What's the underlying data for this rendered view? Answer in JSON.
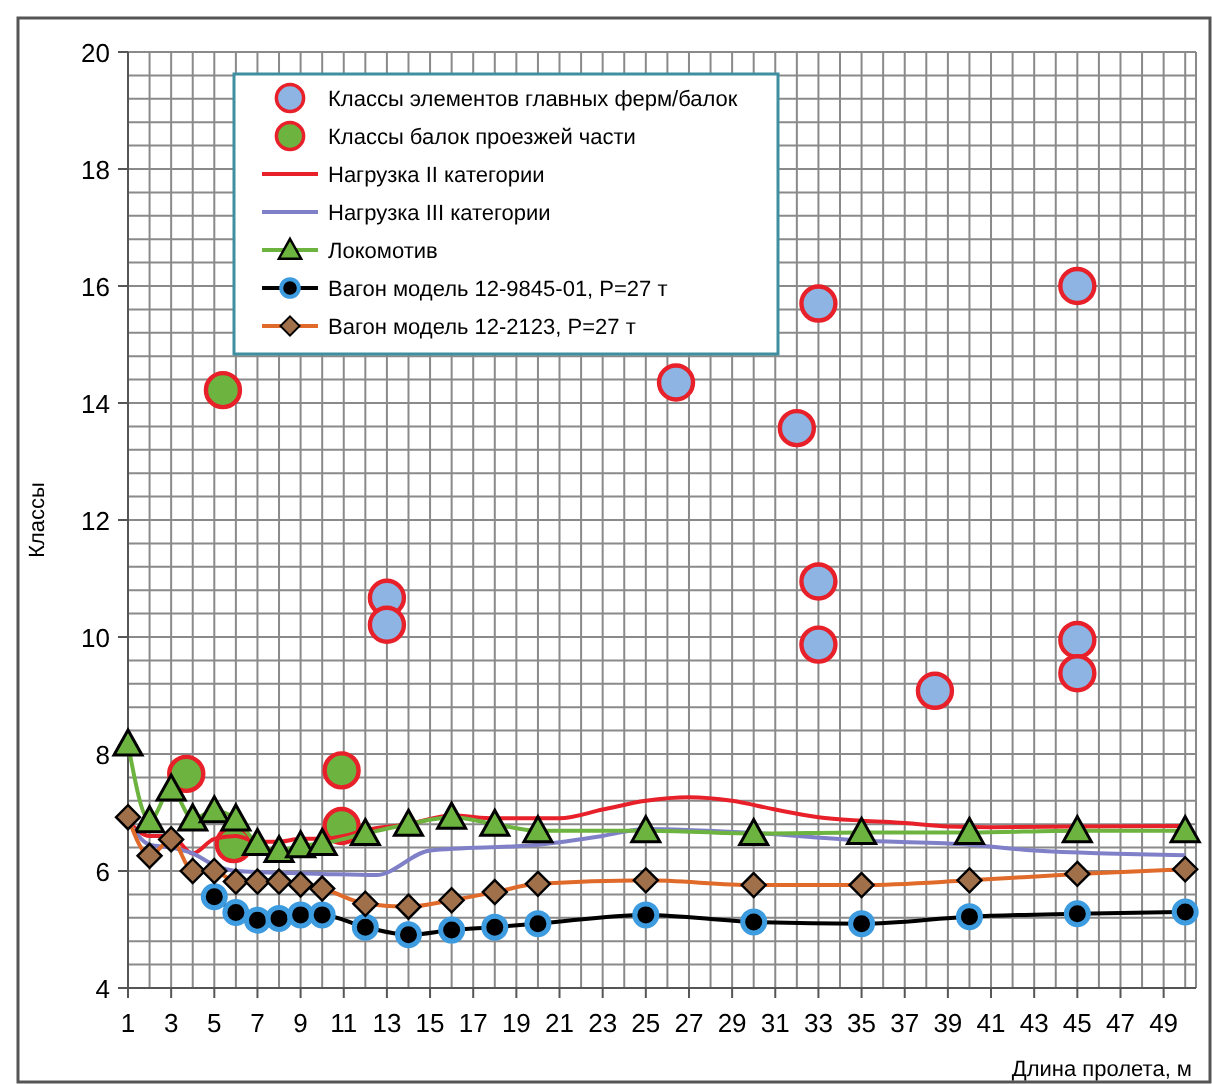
{
  "chart_data": {
    "type": "line",
    "ylabel": "Классы",
    "xlabel": "Длина пролета, м",
    "xlim": [
      1,
      50.5
    ],
    "ylim": [
      4,
      20
    ],
    "xticks": [
      1,
      {
        "value": 2,
        "label": null
      },
      3,
      {
        "value": 4,
        "label": null
      },
      5,
      {
        "value": 6,
        "label": null
      },
      7,
      {
        "value": 8,
        "label": null
      },
      9,
      {
        "value": 10,
        "label": null
      },
      11,
      {
        "value": 12,
        "label": null
      },
      13,
      {
        "value": 14,
        "label": null
      },
      15,
      {
        "value": 16,
        "label": null
      },
      17,
      {
        "value": 18,
        "label": null
      },
      19,
      {
        "value": 20,
        "label": null
      },
      21,
      {
        "value": 22,
        "label": null
      },
      23,
      {
        "value": 24,
        "label": null
      },
      25,
      {
        "value": 26,
        "label": null
      },
      27,
      {
        "value": 28,
        "label": null
      },
      29,
      {
        "value": 30,
        "label": null
      },
      31,
      {
        "value": 32,
        "label": null
      },
      33,
      {
        "value": 34,
        "label": null
      },
      35,
      {
        "value": 36,
        "label": null
      },
      37,
      {
        "value": 38,
        "label": null
      },
      39,
      {
        "value": 40,
        "label": null
      },
      41,
      {
        "value": 42,
        "label": null
      },
      43,
      {
        "value": 44,
        "label": null
      },
      45,
      {
        "value": 46,
        "label": null
      },
      47,
      {
        "value": 48,
        "label": null
      },
      49,
      {
        "value": 50,
        "label": null
      }
    ],
    "yticks": [
      4,
      {
        "value": 4.4,
        "label": null
      },
      {
        "value": 4.8,
        "label": null
      },
      {
        "value": 5.2,
        "label": null
      },
      {
        "value": 5.6,
        "label": null
      },
      6,
      {
        "value": 6.4,
        "label": null
      },
      {
        "value": 6.8,
        "label": null
      },
      {
        "value": 7.2,
        "label": null
      },
      {
        "value": 7.6,
        "label": null
      },
      8,
      {
        "value": 8.4,
        "label": null
      },
      {
        "value": 8.8,
        "label": null
      },
      {
        "value": 9.2,
        "label": null
      },
      {
        "value": 9.6,
        "label": null
      },
      10,
      {
        "value": 10.4,
        "label": null
      },
      {
        "value": 10.8,
        "label": null
      },
      {
        "value": 11.2,
        "label": null
      },
      {
        "value": 11.6,
        "label": null
      },
      12,
      {
        "value": 12.4,
        "label": null
      },
      {
        "value": 12.8,
        "label": null
      },
      {
        "value": 13.2,
        "label": null
      },
      {
        "value": 13.6,
        "label": null
      },
      14,
      {
        "value": 14.4,
        "label": null
      },
      {
        "value": 14.8,
        "label": null
      },
      {
        "value": 15.2,
        "label": null
      },
      {
        "value": 15.6,
        "label": null
      },
      16,
      {
        "value": 16.4,
        "label": null
      },
      {
        "value": 16.8,
        "label": null
      },
      {
        "value": 17.2,
        "label": null
      },
      {
        "value": 17.6,
        "label": null
      },
      18,
      {
        "value": 18.4,
        "label": null
      },
      {
        "value": 18.8,
        "label": null
      },
      {
        "value": 19.2,
        "label": null
      },
      {
        "value": 19.6,
        "label": null
      },
      20
    ],
    "grid": true,
    "legend": "top left",
    "series": [
      {
        "type": "scatter",
        "name": "Классы элементов главных ферм/балок",
        "color": "#8db4e2",
        "marker": "circle",
        "x": [
          13,
          13,
          26.4,
          32,
          33,
          33,
          33,
          38.4,
          45,
          45,
          45
        ],
        "values": [
          10.67,
          10.21,
          14.35,
          13.57,
          15.7,
          10.95,
          9.87,
          9.08,
          16.0,
          9.95,
          9.38
        ]
      },
      {
        "type": "scatter",
        "name": "Классы балок проезжей части",
        "color": "#6db33f",
        "marker": "circle",
        "x": [
          3.7,
          5.4,
          5.9,
          10.9,
          10.9
        ],
        "values": [
          7.66,
          14.22,
          6.46,
          7.72,
          6.77
        ]
      },
      {
        "name": "Нагрузка II категории",
        "color": "#e8202a",
        "marker": "none",
        "x": [
          1,
          2,
          3,
          4,
          5,
          6,
          7,
          8,
          9,
          10,
          11,
          12,
          14,
          16,
          18,
          20,
          21,
          23,
          25,
          27,
          29,
          31,
          33,
          35,
          37,
          39,
          41,
          45,
          50
        ],
        "values": [
          6.85,
          6.6,
          6.6,
          6.3,
          6.55,
          6.6,
          6.5,
          6.5,
          6.55,
          6.55,
          6.6,
          6.7,
          6.8,
          6.95,
          6.9,
          6.9,
          6.9,
          7.05,
          7.2,
          7.26,
          7.2,
          7.05,
          6.92,
          6.86,
          6.82,
          6.76,
          6.75,
          6.76,
          6.77
        ]
      },
      {
        "name": "Нагрузка III категории",
        "color": "#8080c8",
        "marker": "none",
        "x": [
          1,
          2,
          3,
          4,
          5,
          6,
          8,
          10,
          12.5,
          15,
          20,
          23,
          25,
          30,
          35,
          40,
          43,
          50
        ],
        "values": [
          6.85,
          6.45,
          6.4,
          6.3,
          6.1,
          6.0,
          5.97,
          5.95,
          5.93,
          6.35,
          6.45,
          6.6,
          6.72,
          6.65,
          6.52,
          6.45,
          6.35,
          6.27
        ]
      },
      {
        "name": "Локомотив",
        "color": "#6db33f",
        "marker": "triangle",
        "x": [
          1,
          2,
          3,
          4,
          5,
          6,
          7,
          8,
          9,
          10,
          12,
          14,
          16,
          18,
          20,
          25,
          30,
          35,
          40,
          45,
          50
        ],
        "values": [
          8.17,
          6.86,
          7.4,
          6.89,
          7.03,
          6.89,
          6.47,
          6.35,
          6.43,
          6.47,
          6.64,
          6.8,
          6.92,
          6.8,
          6.69,
          6.69,
          6.64,
          6.66,
          6.66,
          6.69,
          6.69
        ]
      },
      {
        "name": "Вагон модель 12-9845-01, P=27 т",
        "color": "#000000",
        "marker": "circle",
        "x": [
          5,
          6,
          7,
          8,
          9,
          10,
          12,
          14,
          16,
          18,
          20,
          25,
          30,
          35,
          40,
          45,
          50
        ],
        "values": [
          5.56,
          5.29,
          5.16,
          5.19,
          5.25,
          5.25,
          5.04,
          4.91,
          4.99,
          5.04,
          5.1,
          5.25,
          5.13,
          5.1,
          5.22,
          5.27,
          5.3
        ]
      },
      {
        "name": "Вагон модель 12-2123, P=27 т",
        "color": "#e06a2a",
        "marker": "diamond",
        "x": [
          1,
          2,
          3,
          4,
          5,
          6,
          7,
          8,
          9,
          10,
          12,
          14,
          16,
          18,
          20,
          25,
          30,
          35,
          40,
          45,
          50
        ],
        "values": [
          6.92,
          6.26,
          6.54,
          6.0,
          6.0,
          5.82,
          5.82,
          5.82,
          5.77,
          5.7,
          5.44,
          5.39,
          5.5,
          5.64,
          5.78,
          5.84,
          5.76,
          5.76,
          5.84,
          5.95,
          6.03
        ]
      }
    ]
  }
}
